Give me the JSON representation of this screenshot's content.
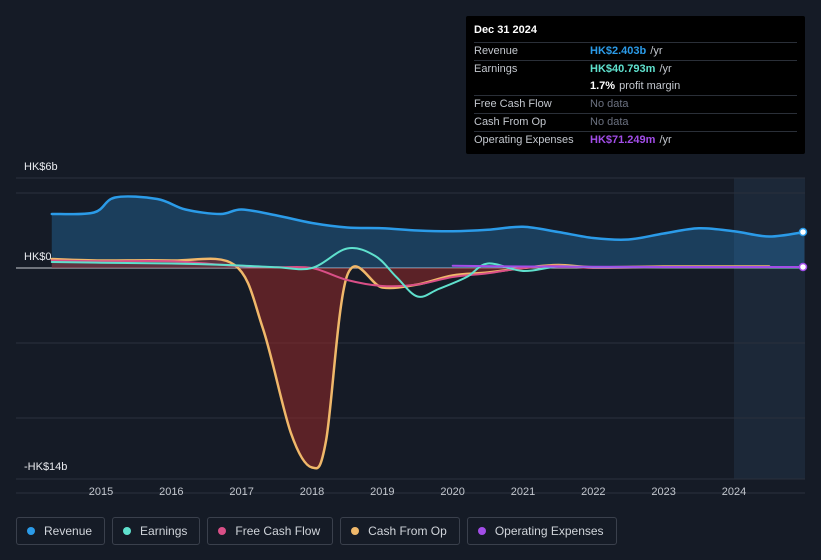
{
  "tooltip": {
    "date": "Dec 31 2024",
    "rows": [
      {
        "label": "Revenue",
        "value": "HK$2.403b",
        "unit": "/yr",
        "color": "#2b9be8"
      },
      {
        "label": "Earnings",
        "value": "HK$40.793m",
        "unit": "/yr",
        "color": "#5fe0cd"
      },
      {
        "label": "",
        "value": "1.7%",
        "unit": "profit margin",
        "color": "#ffffff"
      },
      {
        "label": "Free Cash Flow",
        "nodata": "No data"
      },
      {
        "label": "Cash From Op",
        "nodata": "No data"
      },
      {
        "label": "Operating Expenses",
        "value": "HK$71.249m",
        "unit": "/yr",
        "color": "#a24de8"
      }
    ]
  },
  "legend": [
    {
      "label": "Revenue",
      "color": "#2b9be8"
    },
    {
      "label": "Earnings",
      "color": "#5fe0cd"
    },
    {
      "label": "Free Cash Flow",
      "color": "#d94f87"
    },
    {
      "label": "Cash From Op",
      "color": "#f0b86a"
    },
    {
      "label": "Operating Expenses",
      "color": "#a24de8"
    }
  ],
  "chart_data": {
    "type": "line",
    "title": "",
    "ylabel": "",
    "xlabel": "",
    "y_unit": "HK$ billions",
    "ylim": [
      -14,
      6
    ],
    "y_tick_labels": [
      "HK$6b",
      "HK$0",
      "-HK$14b"
    ],
    "x_tick_labels": [
      "2015",
      "2016",
      "2017",
      "2018",
      "2019",
      "2020",
      "2021",
      "2022",
      "2023",
      "2024"
    ],
    "xlim": [
      2014.3,
      2025.0
    ],
    "forecast_start": 2024.0,
    "series": [
      {
        "name": "Revenue",
        "color": "#2b9be8",
        "fill": true,
        "points": [
          [
            2014.3,
            3.6
          ],
          [
            2014.9,
            3.7
          ],
          [
            2015.2,
            4.7
          ],
          [
            2015.8,
            4.6
          ],
          [
            2016.2,
            3.9
          ],
          [
            2016.7,
            3.6
          ],
          [
            2017.0,
            3.9
          ],
          [
            2017.5,
            3.5
          ],
          [
            2018.0,
            3.0
          ],
          [
            2018.5,
            2.7
          ],
          [
            2019.0,
            2.65
          ],
          [
            2019.5,
            2.5
          ],
          [
            2020.0,
            2.45
          ],
          [
            2020.5,
            2.55
          ],
          [
            2021.0,
            2.75
          ],
          [
            2021.5,
            2.4
          ],
          [
            2022.0,
            2.0
          ],
          [
            2022.5,
            1.9
          ],
          [
            2023.0,
            2.3
          ],
          [
            2023.5,
            2.65
          ],
          [
            2024.0,
            2.45
          ],
          [
            2024.5,
            2.1
          ],
          [
            2025.0,
            2.4
          ]
        ]
      },
      {
        "name": "Earnings",
        "color": "#5fe0cd",
        "fill": false,
        "points": [
          [
            2014.3,
            0.4
          ],
          [
            2015.0,
            0.35
          ],
          [
            2016.0,
            0.3
          ],
          [
            2016.8,
            0.2
          ],
          [
            2017.5,
            0.05
          ],
          [
            2018.0,
            0.0
          ],
          [
            2018.5,
            1.3
          ],
          [
            2018.9,
            0.8
          ],
          [
            2019.2,
            -0.6
          ],
          [
            2019.5,
            -1.9
          ],
          [
            2019.8,
            -1.4
          ],
          [
            2020.2,
            -0.6
          ],
          [
            2020.5,
            0.3
          ],
          [
            2021.0,
            -0.2
          ],
          [
            2021.5,
            0.1
          ],
          [
            2022.0,
            0.05
          ],
          [
            2023.0,
            0.05
          ],
          [
            2024.0,
            0.05
          ],
          [
            2025.0,
            0.04
          ]
        ]
      },
      {
        "name": "Cash From Op",
        "color": "#f0b86a",
        "fill": true,
        "points": [
          [
            2014.3,
            0.6
          ],
          [
            2015.0,
            0.5
          ],
          [
            2016.0,
            0.5
          ],
          [
            2016.9,
            0.2
          ],
          [
            2017.3,
            -4.0
          ],
          [
            2017.7,
            -11.0
          ],
          [
            2018.0,
            -13.3
          ],
          [
            2018.2,
            -11.5
          ],
          [
            2018.5,
            -0.5
          ],
          [
            2019.0,
            -1.3
          ],
          [
            2019.5,
            -1.1
          ],
          [
            2020.0,
            -0.5
          ],
          [
            2020.5,
            -0.3
          ],
          [
            2021.0,
            0.0
          ],
          [
            2021.5,
            0.2
          ],
          [
            2022.0,
            0.05
          ],
          [
            2023.0,
            0.1
          ],
          [
            2024.0,
            0.1
          ],
          [
            2024.5,
            0.1
          ]
        ]
      },
      {
        "name": "Free Cash Flow",
        "color": "#d94f87",
        "fill": false,
        "points": [
          [
            2014.3,
            0.5
          ],
          [
            2015.0,
            0.45
          ],
          [
            2016.0,
            0.45
          ],
          [
            2016.9,
            0.15
          ],
          [
            2017.5,
            0.05
          ],
          [
            2018.0,
            0.0
          ],
          [
            2018.5,
            -0.8
          ],
          [
            2019.0,
            -1.2
          ],
          [
            2019.5,
            -1.1
          ],
          [
            2020.0,
            -0.6
          ],
          [
            2020.5,
            -0.35
          ],
          [
            2021.0,
            0.0
          ],
          [
            2021.5,
            0.15
          ],
          [
            2022.0,
            0.0
          ],
          [
            2023.0,
            0.05
          ],
          [
            2024.0,
            0.05
          ],
          [
            2024.5,
            0.05
          ]
        ]
      },
      {
        "name": "Operating Expenses",
        "color": "#a24de8",
        "fill": false,
        "points": [
          [
            2020.0,
            0.15
          ],
          [
            2021.0,
            0.1
          ],
          [
            2022.0,
            0.08
          ],
          [
            2023.0,
            0.07
          ],
          [
            2024.0,
            0.07
          ],
          [
            2025.0,
            0.07
          ]
        ]
      }
    ]
  }
}
